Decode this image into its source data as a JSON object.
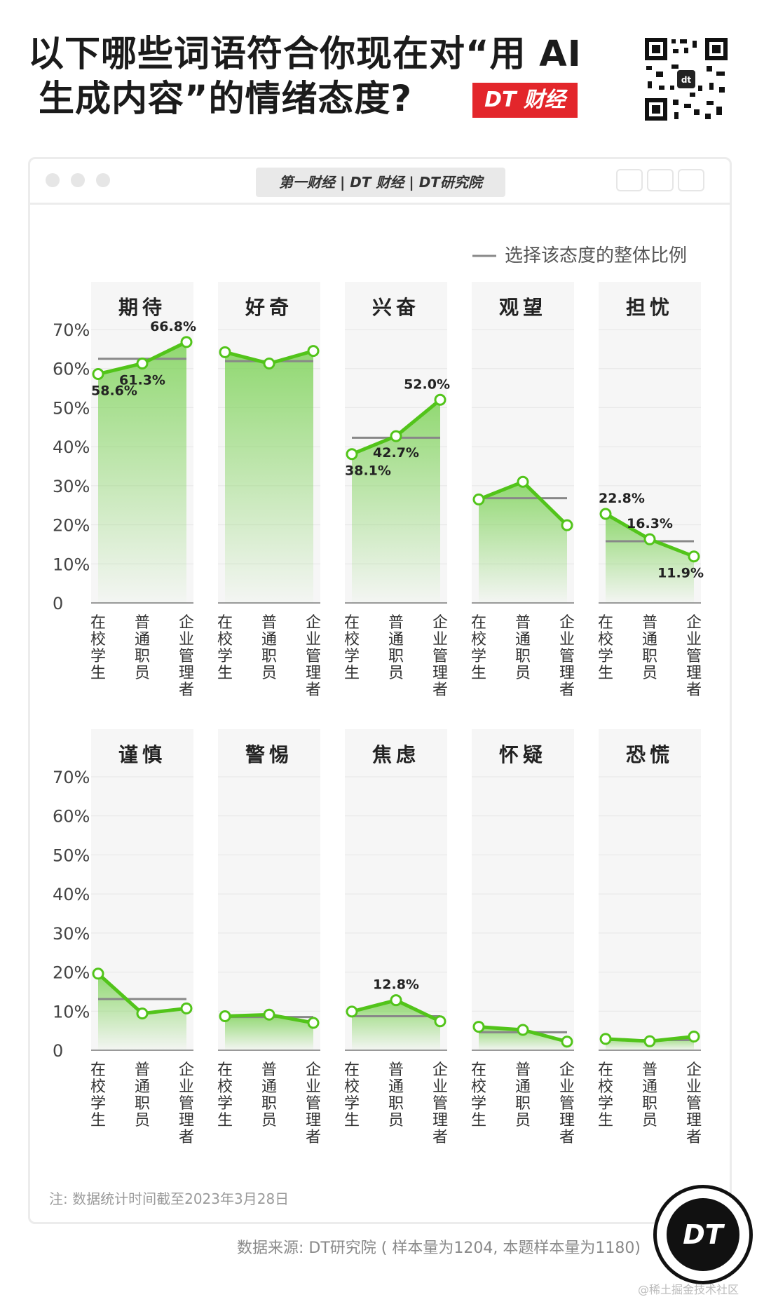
{
  "header": {
    "title_line1": "以下哪些词语符合你现在对“用 AI",
    "title_line2": "生成内容”的情绪态度?",
    "brand_badge": "DT 财经",
    "logo_bar": "第一财经 | DT 财经 | DT研究院",
    "qr_icon": "qr-code-icon"
  },
  "legend": {
    "line_label": "选择该态度的整体比例"
  },
  "footer": {
    "note": "注: 数据统计时间截至2023年3月28日",
    "source": "数据来源: DT研究院 ( 样本量为1204, 本题样本量为1180)",
    "badge_text": "DT",
    "credit": "@稀土掘金技术社区"
  },
  "colors": {
    "line": "#52c41a",
    "fill": "#7fd35a",
    "accent_red": "#e3262b",
    "overall_line": "#888888"
  },
  "chart_data": {
    "type": "line",
    "categories": [
      "在校学生",
      "普通职员",
      "企业管理者"
    ],
    "ylim": [
      0,
      70
    ],
    "yticks": [
      "0",
      "10%",
      "20%",
      "30%",
      "40%",
      "50%",
      "60%",
      "70%"
    ],
    "panels": [
      {
        "name": "期待",
        "values": [
          58.6,
          61.3,
          66.8
        ],
        "overall": 62.5,
        "labels": [
          "58.6%",
          "61.3%",
          "66.8%"
        ]
      },
      {
        "name": "好奇",
        "values": [
          64.2,
          61.3,
          64.5
        ],
        "overall": 61.9,
        "labels": [
          "",
          "",
          ""
        ]
      },
      {
        "name": "兴奋",
        "values": [
          38.1,
          42.7,
          52.0
        ],
        "overall": 42.3,
        "labels": [
          "38.1%",
          "42.7%",
          "52.0%"
        ]
      },
      {
        "name": "观望",
        "values": [
          26.5,
          31.0,
          19.9
        ],
        "overall": 26.8,
        "labels": [
          "",
          "",
          ""
        ]
      },
      {
        "name": "担忧",
        "values": [
          22.8,
          16.3,
          11.9
        ],
        "overall": 15.8,
        "labels": [
          "22.8%",
          "16.3%",
          "11.9%"
        ]
      },
      {
        "name": "谨慎",
        "values": [
          19.6,
          9.4,
          10.7
        ],
        "overall": 13.1,
        "labels": [
          "",
          "",
          ""
        ]
      },
      {
        "name": "警惕",
        "values": [
          8.7,
          9.1,
          7.0
        ],
        "overall": 8.5,
        "labels": [
          "",
          "",
          ""
        ]
      },
      {
        "name": "焦虑",
        "values": [
          9.9,
          12.8,
          7.4
        ],
        "overall": 8.7,
        "labels": [
          "",
          "12.8%",
          ""
        ]
      },
      {
        "name": "怀疑",
        "values": [
          6.0,
          5.2,
          2.2
        ],
        "overall": 4.6,
        "labels": [
          "",
          "",
          ""
        ]
      },
      {
        "name": "恐慌",
        "values": [
          2.9,
          2.3,
          3.5
        ],
        "overall": 2.6,
        "labels": [
          "",
          "",
          ""
        ]
      }
    ]
  }
}
